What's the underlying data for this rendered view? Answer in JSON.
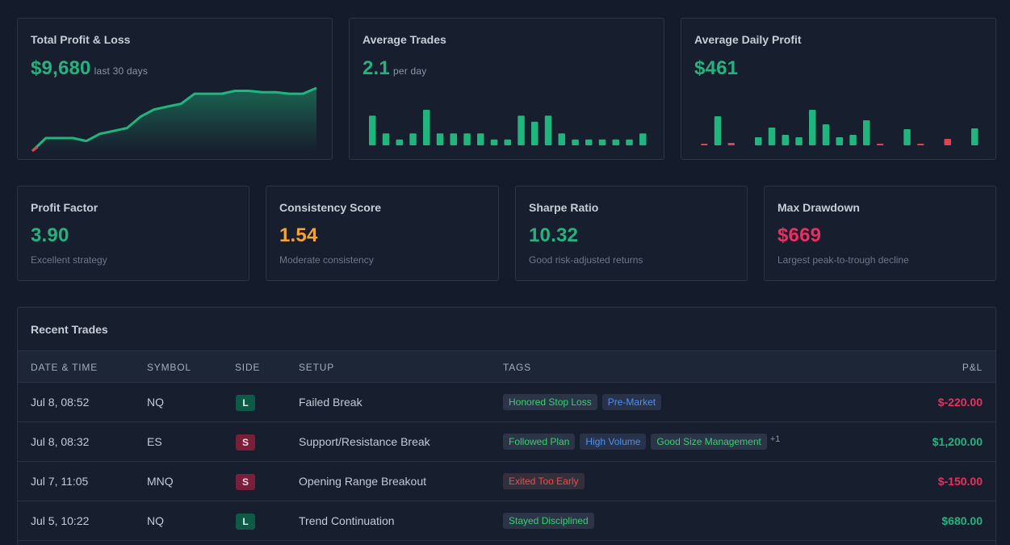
{
  "top_cards": {
    "pnl": {
      "title": "Total Profit & Loss",
      "value": "$9,680",
      "suffix": "last 30 days"
    },
    "avg_trades": {
      "title": "Average Trades",
      "value": "2.1",
      "suffix": "per day"
    },
    "avg_daily": {
      "title": "Average Daily Profit",
      "value": "$461"
    }
  },
  "stat_cards": {
    "profit_factor": {
      "title": "Profit Factor",
      "value": "3.90",
      "caption": "Excellent strategy"
    },
    "consistency": {
      "title": "Consistency Score",
      "value": "1.54",
      "caption": "Moderate consistency"
    },
    "sharpe": {
      "title": "Sharpe Ratio",
      "value": "10.32",
      "caption": "Good risk-adjusted returns"
    },
    "drawdown": {
      "title": "Max Drawdown",
      "value": "$669",
      "caption": "Largest peak-to-trough decline"
    }
  },
  "colors": {
    "green": "#22b37e",
    "red": "#ec2d5f",
    "orange": "#f4a431",
    "bar_green": "#1fb57d",
    "bar_red": "#e0424f"
  },
  "chart_data": [
    {
      "type": "area",
      "values": [
        0,
        9,
        9,
        9,
        7,
        12,
        14,
        16,
        24,
        29,
        31,
        33,
        40,
        40,
        40,
        42,
        42,
        41,
        41,
        40,
        40,
        44
      ]
    },
    {
      "type": "bar",
      "values": [
        5,
        2,
        1,
        2,
        6,
        2,
        2,
        2,
        2,
        1,
        1,
        5,
        4,
        5,
        2,
        1,
        1,
        1,
        1,
        1,
        2
      ]
    },
    {
      "type": "bar",
      "values": [
        -0.1,
        3.6,
        -0.3,
        0,
        1,
        2.2,
        1.3,
        1,
        4.4,
        2.6,
        1,
        1.3,
        3.1,
        -0.2,
        0,
        2,
        -0.2,
        0,
        -0.8,
        0,
        2.1
      ]
    }
  ],
  "recent_trades": {
    "title": "Recent Trades",
    "columns": [
      "DATE & TIME",
      "SYMBOL",
      "SIDE",
      "SETUP",
      "TAGS",
      "P&L"
    ],
    "rows": [
      {
        "date": "Jul 8, 08:52",
        "symbol": "NQ",
        "side": "L",
        "setup": "Failed Break",
        "tags": [
          {
            "label": "Honored Stop Loss",
            "kind": "green"
          },
          {
            "label": "Pre-Market",
            "kind": "blue"
          }
        ],
        "more": "",
        "pnl": "$-220.00",
        "pnl_kind": "red"
      },
      {
        "date": "Jul 8, 08:32",
        "symbol": "ES",
        "side": "S",
        "setup": "Support/Resistance Break",
        "tags": [
          {
            "label": "Followed Plan",
            "kind": "green"
          },
          {
            "label": "High Volume",
            "kind": "blue"
          },
          {
            "label": "Good Size Management",
            "kind": "green"
          }
        ],
        "more": "+1",
        "pnl": "$1,200.00",
        "pnl_kind": "green"
      },
      {
        "date": "Jul 7, 11:05",
        "symbol": "MNQ",
        "side": "S",
        "setup": "Opening Range Breakout",
        "tags": [
          {
            "label": "Exited Too Early",
            "kind": "red"
          }
        ],
        "more": "",
        "pnl": "$-150.00",
        "pnl_kind": "red"
      },
      {
        "date": "Jul 5, 10:22",
        "symbol": "NQ",
        "side": "L",
        "setup": "Trend Continuation",
        "tags": [
          {
            "label": "Stayed Disciplined",
            "kind": "green"
          }
        ],
        "more": "",
        "pnl": "$680.00",
        "pnl_kind": "green"
      }
    ]
  }
}
